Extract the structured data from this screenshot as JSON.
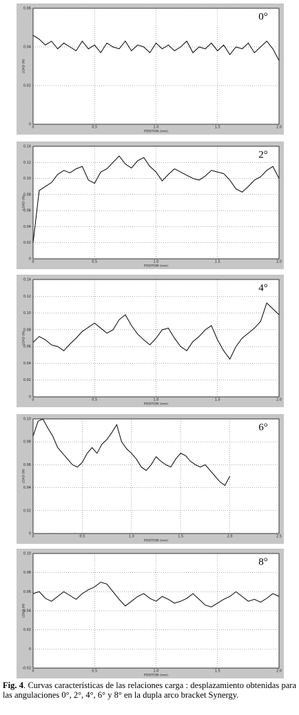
{
  "chart_data": [
    {
      "type": "line",
      "title": "0°",
      "xlabel": "POSITION (mm)",
      "ylabel": "LOAD (N)",
      "x": [
        0,
        0.05,
        0.1,
        0.15,
        0.2,
        0.25,
        0.3,
        0.35,
        0.4,
        0.45,
        0.5,
        0.55,
        0.6,
        0.65,
        0.7,
        0.75,
        0.8,
        0.85,
        0.9,
        0.95,
        1,
        1.05,
        1.1,
        1.15,
        1.2,
        1.25,
        1.3,
        1.35,
        1.4,
        1.45,
        1.5,
        1.55,
        1.6,
        1.65,
        1.7,
        1.75,
        1.8,
        1.85,
        1.9,
        1.95,
        2
      ],
      "series": [
        {
          "color": "#000000",
          "values": [
            0.046,
            0.044,
            0.041,
            0.043,
            0.039,
            0.042,
            0.04,
            0.038,
            0.043,
            0.039,
            0.041,
            0.037,
            0.042,
            0.04,
            0.039,
            0.043,
            0.038,
            0.041,
            0.04,
            0.037,
            0.042,
            0.039,
            0.041,
            0.038,
            0.04,
            0.043,
            0.037,
            0.04,
            0.039,
            0.042,
            0.038,
            0.041,
            0.036,
            0.04,
            0.039,
            0.042,
            0.037,
            0.04,
            0.043,
            0.039,
            0.033
          ]
        }
      ],
      "xlim": [
        0,
        2
      ],
      "xticks": [
        0,
        0.5,
        {
          "value": 1,
          "label": "1.0"
        },
        1.5,
        {
          "value": 2,
          "label": "2.0"
        }
      ],
      "ylim": [
        0,
        0.06
      ],
      "yticks": [
        0,
        0.02,
        0.04,
        0.06
      ],
      "grid": true
    },
    {
      "type": "line",
      "title": "2°",
      "xlabel": "POSITION (mm)",
      "ylabel": "LOAD (N)",
      "x": [
        0,
        0.05,
        0.1,
        0.15,
        0.2,
        0.25,
        0.3,
        0.35,
        0.4,
        0.45,
        0.5,
        0.55,
        0.6,
        0.65,
        0.7,
        0.75,
        0.8,
        0.85,
        0.9,
        0.95,
        1,
        1.05,
        1.1,
        1.15,
        1.2,
        1.25,
        1.3,
        1.35,
        1.4,
        1.45,
        1.5,
        1.55,
        1.6,
        1.65,
        1.7,
        1.75,
        1.8,
        1.85,
        1.9,
        1.95,
        2
      ],
      "series": [
        {
          "color": "#000000",
          "values": [
            0.02,
            0.085,
            0.09,
            0.095,
            0.105,
            0.11,
            0.107,
            0.112,
            0.115,
            0.098,
            0.094,
            0.108,
            0.112,
            0.12,
            0.128,
            0.118,
            0.113,
            0.122,
            0.126,
            0.115,
            0.108,
            0.097,
            0.105,
            0.112,
            0.108,
            0.104,
            0.1,
            0.098,
            0.103,
            0.11,
            0.108,
            0.106,
            0.098,
            0.087,
            0.083,
            0.09,
            0.098,
            0.102,
            0.11,
            0.115,
            0.1
          ]
        }
      ],
      "xlim": [
        0,
        2
      ],
      "xticks": [
        0,
        0.5,
        {
          "value": 1,
          "label": "1.0"
        },
        1.5,
        {
          "value": 2,
          "label": "2.0"
        }
      ],
      "ylim": [
        0,
        0.14
      ],
      "yticks": [
        0,
        0.02,
        0.04,
        0.06,
        0.08,
        {
          "value": 0.1,
          "label": "0.10"
        },
        0.12,
        0.14
      ],
      "grid": true
    },
    {
      "type": "line",
      "title": "4°",
      "xlabel": "POSITION (mm)",
      "ylabel": "LOAD (N)",
      "x": [
        0,
        0.05,
        0.1,
        0.15,
        0.2,
        0.25,
        0.3,
        0.35,
        0.4,
        0.45,
        0.5,
        0.55,
        0.6,
        0.65,
        0.7,
        0.75,
        0.8,
        0.85,
        0.9,
        0.95,
        1,
        1.05,
        1.1,
        1.15,
        1.2,
        1.25,
        1.3,
        1.35,
        1.4,
        1.45,
        1.5,
        1.55,
        1.6,
        1.65,
        1.7,
        1.75,
        1.8,
        1.85,
        1.9,
        1.95,
        2
      ],
      "series": [
        {
          "color": "#000000",
          "values": [
            0.065,
            0.072,
            0.068,
            0.062,
            0.06,
            0.055,
            0.063,
            0.07,
            0.078,
            0.083,
            0.088,
            0.082,
            0.076,
            0.08,
            0.092,
            0.098,
            0.085,
            0.075,
            0.068,
            0.062,
            0.07,
            0.08,
            0.082,
            0.07,
            0.06,
            0.055,
            0.066,
            0.072,
            0.08,
            0.085,
            0.068,
            0.055,
            0.045,
            0.06,
            0.07,
            0.076,
            0.082,
            0.09,
            0.112,
            0.105,
            0.098
          ]
        }
      ],
      "xlim": [
        0,
        2
      ],
      "xticks": [
        0,
        0.5,
        {
          "value": 1,
          "label": "1.0"
        },
        1.5,
        {
          "value": 2,
          "label": "2.0"
        }
      ],
      "ylim": [
        0,
        0.14
      ],
      "yticks": [
        0,
        0.02,
        0.04,
        0.06,
        0.08,
        {
          "value": 0.1,
          "label": "0.10"
        },
        0.12,
        0.14
      ],
      "grid": true
    },
    {
      "type": "line",
      "title": "6°",
      "xlabel": "POSITION (mm)",
      "ylabel": "LOAD (N)",
      "x": [
        0,
        0.05,
        0.1,
        0.15,
        0.2,
        0.25,
        0.3,
        0.35,
        0.4,
        0.45,
        0.5,
        0.55,
        0.6,
        0.65,
        0.7,
        0.75,
        0.8,
        0.85,
        0.9,
        0.95,
        1,
        1.05,
        1.1,
        1.15,
        1.2,
        1.25,
        1.3,
        1.35,
        1.4,
        1.45,
        1.5,
        1.55,
        1.6,
        1.65,
        1.7,
        1.75,
        1.8,
        1.85,
        1.9,
        1.95,
        2
      ],
      "series": [
        {
          "color": "#000000",
          "values": [
            0.085,
            0.098,
            0.1,
            0.092,
            0.085,
            0.075,
            0.07,
            0.065,
            0.06,
            0.058,
            0.062,
            0.07,
            0.075,
            0.07,
            0.078,
            0.082,
            0.088,
            0.095,
            0.08,
            0.074,
            0.07,
            0.065,
            0.058,
            0.055,
            0.06,
            0.067,
            0.063,
            0.06,
            0.058,
            0.065,
            0.07,
            0.068,
            0.063,
            0.06,
            0.058,
            0.06,
            0.055,
            0.05,
            0.045,
            0.042,
            0.05
          ]
        }
      ],
      "xlim": [
        0,
        2.5
      ],
      "xticks": [
        0,
        0.5,
        {
          "value": 1,
          "label": "1.0"
        },
        1.5,
        {
          "value": 2,
          "label": "2.0"
        },
        2.5
      ],
      "ylim": [
        0,
        0.1
      ],
      "yticks": [
        0,
        0.02,
        0.04,
        0.06,
        0.08,
        {
          "value": 0.1,
          "label": "0.10"
        }
      ],
      "grid": true
    },
    {
      "type": "line",
      "title": "8°",
      "xlabel": "POSITION (mm)",
      "ylabel": "LOAD (N)",
      "x": [
        0,
        0.05,
        0.1,
        0.15,
        0.2,
        0.25,
        0.3,
        0.35,
        0.4,
        0.45,
        0.5,
        0.55,
        0.6,
        0.65,
        0.7,
        0.75,
        0.8,
        0.85,
        0.9,
        0.95,
        1,
        1.05,
        1.1,
        1.15,
        1.2,
        1.25,
        1.3,
        1.35,
        1.4,
        1.45,
        1.5,
        1.55,
        1.6,
        1.65,
        1.7,
        1.75,
        1.8,
        1.85,
        1.9,
        1.95,
        2
      ],
      "series": [
        {
          "color": "#000000",
          "values": [
            0.058,
            0.06,
            0.053,
            0.05,
            0.055,
            0.06,
            0.056,
            0.052,
            0.058,
            0.062,
            0.065,
            0.07,
            0.068,
            0.06,
            0.052,
            0.045,
            0.05,
            0.055,
            0.058,
            0.053,
            0.05,
            0.055,
            0.052,
            0.048,
            0.05,
            0.053,
            0.058,
            0.052,
            0.046,
            0.044,
            0.048,
            0.052,
            0.055,
            0.06,
            0.055,
            0.05,
            0.052,
            0.049,
            0.053,
            0.058,
            0.055
          ]
        }
      ],
      "xlim": [
        0,
        2
      ],
      "xticks": [
        0,
        0.5,
        {
          "value": 1,
          "label": "1.0"
        },
        1.5,
        {
          "value": 2,
          "label": "2.0"
        }
      ],
      "ylim": [
        -0.02,
        0.1
      ],
      "yticks": [
        -0.02,
        0,
        0.02,
        0.04,
        0.06,
        0.08,
        {
          "value": 0.1,
          "label": "0.10"
        }
      ],
      "grid": true
    }
  ],
  "caption": {
    "label": "Fig. 4",
    "text": ". Curvas características de las relaciones carga : desplazamiento obtenidas para las angulaciones 0°, 2°, 4°, 6° y 8° en la dupla arco bracket Synergy."
  }
}
